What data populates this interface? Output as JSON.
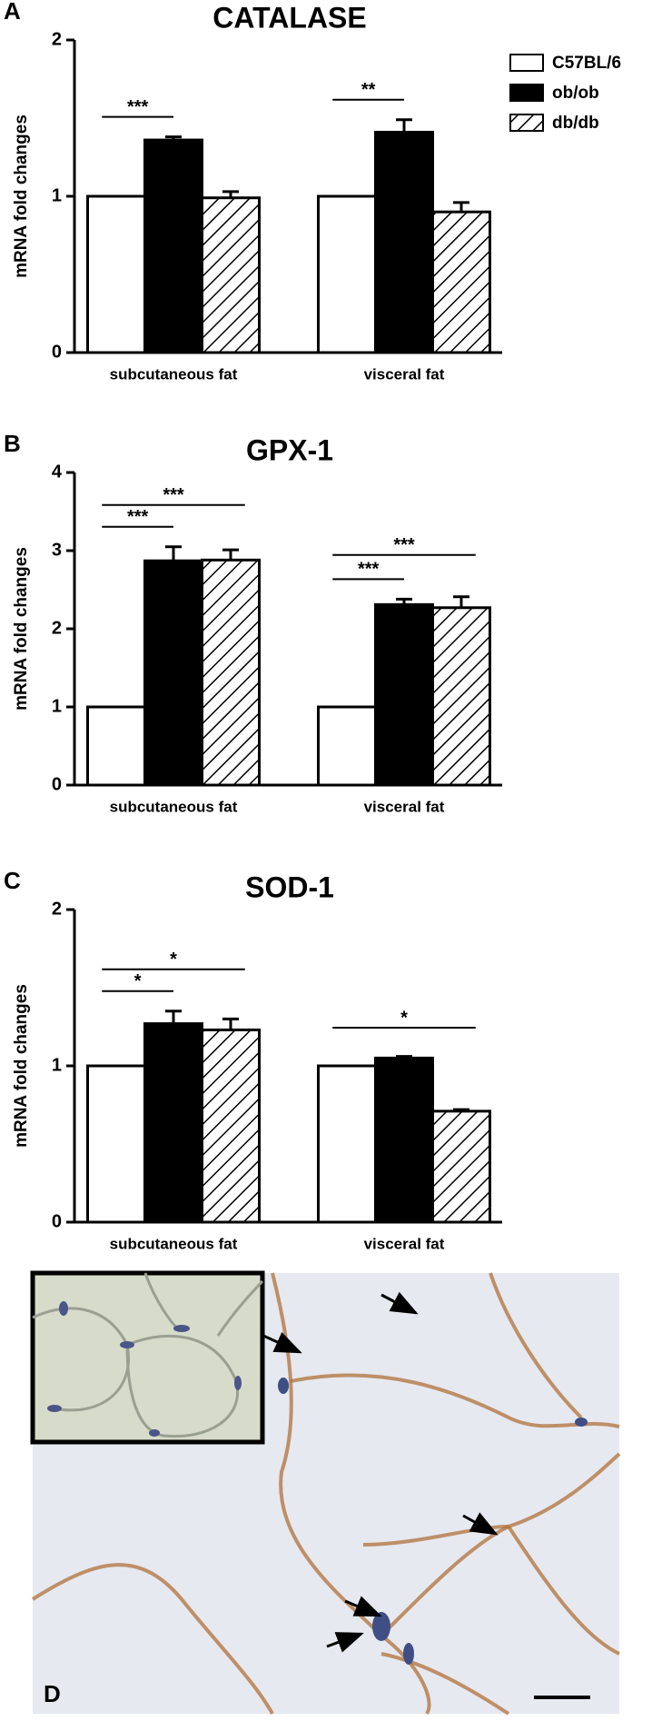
{
  "chart_data": [
    {
      "type": "bar",
      "panel": "A",
      "title": "CATALASE",
      "ylabel": "mRNA fold changes",
      "categories": [
        "subcutaneous fat",
        "visceral fat"
      ],
      "series": [
        {
          "name": "C57BL/6",
          "color": "#ffffff",
          "values": [
            1.0,
            1.0
          ]
        },
        {
          "name": "ob/ob",
          "color": "#000000",
          "values": [
            1.36,
            1.41
          ],
          "errors": [
            0.02,
            0.08
          ]
        },
        {
          "name": "db/db",
          "color": "hatch",
          "values": [
            0.99,
            0.9
          ],
          "errors": [
            0.04,
            0.06
          ]
        }
      ],
      "ylim": [
        0,
        2
      ],
      "yticks": [
        0,
        1,
        2
      ],
      "legend": "top-right",
      "annotations": [
        {
          "category": "subcutaneous fat",
          "between": [
            "C57BL/6",
            "ob/ob"
          ],
          "text": "***"
        },
        {
          "category": "visceral fat",
          "between": [
            "C57BL/6",
            "ob/ob"
          ],
          "text": "**"
        }
      ]
    },
    {
      "type": "bar",
      "panel": "B",
      "title": "GPX-1",
      "ylabel": "mRNA fold changes",
      "categories": [
        "subcutaneous fat",
        "visceral fat"
      ],
      "series": [
        {
          "name": "C57BL/6",
          "color": "#ffffff",
          "values": [
            1.0,
            1.0
          ]
        },
        {
          "name": "ob/ob",
          "color": "#000000",
          "values": [
            2.87,
            2.31
          ],
          "errors": [
            0.18,
            0.07
          ]
        },
        {
          "name": "db/db",
          "color": "hatch",
          "values": [
            2.88,
            2.27
          ],
          "errors": [
            0.13,
            0.14
          ]
        }
      ],
      "ylim": [
        0,
        4
      ],
      "yticks": [
        0,
        1,
        2,
        3,
        4
      ],
      "annotations": [
        {
          "category": "subcutaneous fat",
          "between": [
            "C57BL/6",
            "ob/ob"
          ],
          "text": "***"
        },
        {
          "category": "subcutaneous fat",
          "between": [
            "C57BL/6",
            "db/db"
          ],
          "text": "***"
        },
        {
          "category": "visceral fat",
          "between": [
            "C57BL/6",
            "ob/ob"
          ],
          "text": "***"
        },
        {
          "category": "visceral fat",
          "between": [
            "C57BL/6",
            "db/db"
          ],
          "text": "***"
        }
      ]
    },
    {
      "type": "bar",
      "panel": "C",
      "title": "SOD-1",
      "ylabel": "mRNA fold changes",
      "categories": [
        "subcutaneous fat",
        "visceral fat"
      ],
      "series": [
        {
          "name": "C57BL/6",
          "color": "#ffffff",
          "values": [
            1.0,
            1.0
          ]
        },
        {
          "name": "ob/ob",
          "color": "#000000",
          "values": [
            1.27,
            1.05
          ],
          "errors": [
            0.08,
            0.01
          ]
        },
        {
          "name": "db/db",
          "color": "hatch",
          "values": [
            1.23,
            0.71
          ],
          "errors": [
            0.07,
            0.01
          ]
        }
      ],
      "ylim": [
        0,
        2
      ],
      "yticks": [
        0,
        1,
        2
      ],
      "annotations": [
        {
          "category": "subcutaneous fat",
          "between": [
            "C57BL/6",
            "ob/ob"
          ],
          "text": "*"
        },
        {
          "category": "subcutaneous fat",
          "between": [
            "C57BL/6",
            "db/db"
          ],
          "text": "*"
        },
        {
          "category": "visceral fat",
          "between": [
            "C57BL/6",
            "db/db"
          ],
          "text": "*"
        }
      ]
    }
  ],
  "micrograph": {
    "label": "D"
  }
}
